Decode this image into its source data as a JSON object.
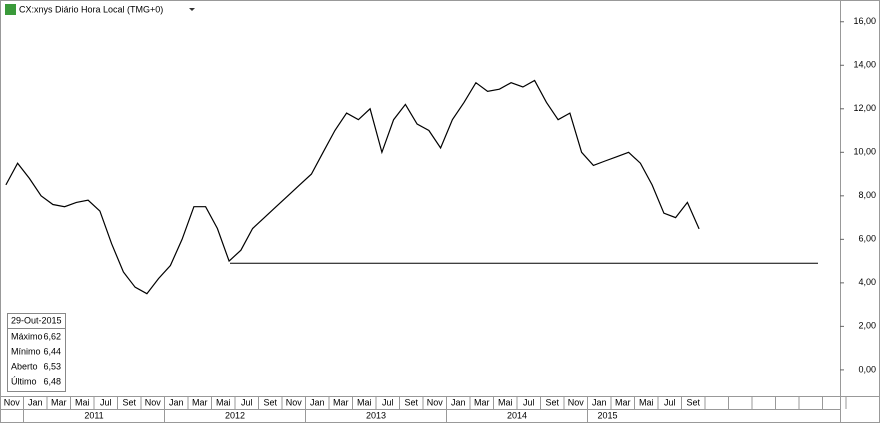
{
  "chart_data": {
    "type": "line",
    "title": "CX:xnys Diário Hora Local (TMG+0)",
    "categories": [
      "Nov",
      null,
      "Jan",
      null,
      "Mar",
      null,
      "Mai",
      null,
      "Jul",
      null,
      "Set",
      null,
      "Nov",
      null,
      "Jan",
      null,
      "Mar",
      null,
      "Mai",
      null,
      "Jul",
      null,
      "Set",
      null,
      "Nov",
      null,
      "Jan",
      null,
      "Mar",
      null,
      "Mai",
      null,
      "Jul",
      null,
      "Set",
      null,
      "Nov",
      null,
      "Jan",
      null,
      "Mar",
      null,
      "Mai",
      null,
      "Jul",
      null,
      "Set",
      null,
      "Nov",
      null,
      "Jan",
      null,
      "Mar",
      null,
      "Mai",
      null,
      "Jul",
      null,
      "Set",
      null
    ],
    "years": [
      "2011",
      "2012",
      "2013",
      "2014",
      "2015"
    ],
    "series": [
      {
        "name": "CX",
        "color": "#000000",
        "values": [
          8.5,
          9.5,
          8.8,
          8.0,
          7.6,
          7.5,
          7.7,
          7.8,
          7.3,
          5.8,
          4.5,
          3.8,
          3.5,
          4.2,
          4.8,
          6.0,
          7.5,
          7.5,
          6.5,
          5.0,
          5.5,
          6.5,
          7.0,
          7.5,
          8.0,
          8.5,
          9.0,
          10.0,
          11.0,
          11.8,
          11.5,
          12.0,
          10.0,
          11.5,
          12.2,
          11.3,
          11.0,
          10.2,
          11.5,
          12.3,
          13.2,
          12.8,
          12.9,
          13.2,
          13.0,
          13.3,
          12.3,
          11.5,
          11.8,
          10.0,
          9.4,
          9.6,
          9.8,
          10.0,
          9.5,
          8.5,
          7.2,
          7.0,
          7.7,
          6.48
        ]
      }
    ],
    "hline": 4.9,
    "ylim": [
      -1.2,
      17.0
    ],
    "yticks": [
      {
        "value": 0,
        "label": "0,00"
      },
      {
        "value": 2,
        "label": "2,00"
      },
      {
        "value": 4,
        "label": "4,00"
      },
      {
        "value": 6,
        "label": "6,00"
      },
      {
        "value": 8,
        "label": "8,00"
      },
      {
        "value": 10,
        "label": "10,00"
      },
      {
        "value": 12,
        "label": "12,00"
      },
      {
        "value": 14,
        "label": "14,00"
      },
      {
        "value": 16,
        "label": "16,00"
      }
    ],
    "info": {
      "date": "29-Out-2015",
      "rows": [
        {
          "label": "Máximo",
          "value": "6,62"
        },
        {
          "label": "Mínimo",
          "value": "6,44"
        },
        {
          "label": "Aberto",
          "value": "6,53"
        },
        {
          "label": "Último",
          "value": "6,48"
        }
      ]
    }
  }
}
